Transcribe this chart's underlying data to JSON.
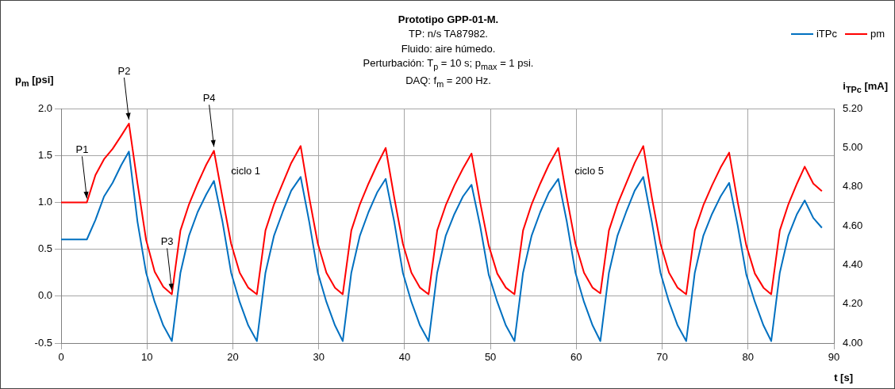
{
  "chart_data": {
    "type": "line",
    "title": "Prototipo GPP-01-M.",
    "subtitle": "TP: n/s TA87982.\nFluido: aire húmedo.\nPerturbación: T$_{p}$ = 10 s; p$_{max}$ = 1 psi.\nDAQ: f$_{m}$ = 200 Hz.",
    "xlabel": "t [s]",
    "ylabel": "p$_{m}$ [psi]",
    "y2label": "i$_{TPc}$ [mA]",
    "x": [
      0,
      3,
      4,
      5,
      6,
      7,
      7.9,
      8.9,
      9.9,
      10.9,
      11.9,
      12.9,
      13.9,
      14.9,
      15.9,
      16.9,
      17.8,
      18.8,
      19.8,
      20.8,
      21.8,
      22.8,
      23.8,
      24.8,
      25.8,
      26.8,
      27.9,
      28.9,
      29.9,
      30.9,
      31.9,
      32.8,
      33.8,
      34.8,
      35.8,
      36.8,
      37.8,
      38.8,
      39.8,
      40.8,
      41.8,
      42.8,
      43.8,
      44.8,
      45.8,
      46.8,
      47.8,
      48.8,
      49.8,
      50.8,
      51.8,
      52.8,
      53.8,
      54.8,
      55.8,
      56.8,
      57.9,
      58.9,
      59.9,
      60.9,
      61.9,
      62.8,
      63.8,
      64.8,
      65.8,
      66.8,
      67.8,
      68.8,
      69.8,
      70.8,
      71.8,
      72.8,
      73.8,
      74.8,
      75.8,
      76.8,
      77.8,
      78.8,
      79.8,
      80.8,
      81.8,
      82.7,
      83.7,
      84.7,
      85.7,
      86.6,
      87.6,
      88.6
    ],
    "series": [
      {
        "name": "iTPc",
        "color": "#0070c0",
        "axis": "y2",
        "values": [
          4.53,
          4.53,
          4.63,
          4.75,
          4.82,
          4.91,
          4.98,
          4.62,
          4.36,
          4.21,
          4.09,
          4.01,
          4.36,
          4.55,
          4.67,
          4.76,
          4.83,
          4.62,
          4.36,
          4.21,
          4.09,
          4.01,
          4.36,
          4.55,
          4.67,
          4.78,
          4.85,
          4.62,
          4.36,
          4.21,
          4.09,
          4.01,
          4.36,
          4.55,
          4.67,
          4.77,
          4.84,
          4.62,
          4.36,
          4.21,
          4.09,
          4.01,
          4.36,
          4.55,
          4.66,
          4.75,
          4.81,
          4.6,
          4.35,
          4.21,
          4.09,
          4.01,
          4.36,
          4.55,
          4.67,
          4.77,
          4.84,
          4.62,
          4.36,
          4.21,
          4.09,
          4.01,
          4.36,
          4.55,
          4.67,
          4.78,
          4.85,
          4.62,
          4.36,
          4.21,
          4.09,
          4.01,
          4.36,
          4.55,
          4.66,
          4.75,
          4.82,
          4.6,
          4.35,
          4.21,
          4.09,
          4.01,
          4.36,
          4.55,
          4.66,
          4.73,
          4.64,
          4.59
        ]
      },
      {
        "name": "pm",
        "color": "#ff0000",
        "values": [
          1.0,
          1.0,
          1.29,
          1.46,
          1.57,
          1.71,
          1.84,
          1.2,
          0.6,
          0.26,
          0.1,
          0.02,
          0.7,
          0.98,
          1.2,
          1.4,
          1.55,
          1.05,
          0.56,
          0.25,
          0.09,
          0.02,
          0.7,
          0.98,
          1.2,
          1.42,
          1.6,
          1.05,
          0.56,
          0.25,
          0.09,
          0.02,
          0.7,
          0.98,
          1.2,
          1.4,
          1.58,
          1.05,
          0.56,
          0.25,
          0.09,
          0.02,
          0.7,
          0.97,
          1.18,
          1.36,
          1.52,
          1.0,
          0.54,
          0.24,
          0.09,
          0.02,
          0.7,
          0.98,
          1.2,
          1.4,
          1.58,
          1.05,
          0.56,
          0.25,
          0.09,
          0.03,
          0.7,
          0.98,
          1.2,
          1.42,
          1.6,
          1.05,
          0.56,
          0.25,
          0.09,
          0.02,
          0.7,
          0.97,
          1.18,
          1.37,
          1.53,
          1.0,
          0.54,
          0.24,
          0.09,
          0.02,
          0.7,
          0.98,
          1.2,
          1.38,
          1.2,
          1.12
        ]
      }
    ],
    "xlim": [
      0,
      90
    ],
    "xticks": [
      0,
      10,
      20,
      30,
      40,
      50,
      60,
      70,
      80,
      90
    ],
    "ylim": [
      -0.5,
      2
    ],
    "yticks": [
      {
        "value": -0.5,
        "label": "-0.5"
      },
      {
        "value": 0,
        "label": "0.0"
      },
      {
        "value": 0.5,
        "label": "0.5"
      },
      {
        "value": 1,
        "label": "1.0"
      },
      {
        "value": 1.5,
        "label": "1.5"
      },
      {
        "value": 2,
        "label": "2.0"
      }
    ],
    "y2lim": [
      4,
      5.2
    ],
    "y2ticks": [
      {
        "value": 4,
        "label": "4.00"
      },
      {
        "value": 4.2,
        "label": "4.20"
      },
      {
        "value": 4.4,
        "label": "4.40"
      },
      {
        "value": 4.6,
        "label": "4.60"
      },
      {
        "value": 4.8,
        "label": "4.80"
      },
      {
        "value": 5,
        "label": "5.00"
      },
      {
        "value": 5.2,
        "label": "5.20"
      }
    ],
    "annotations": [
      {
        "text": "P1",
        "x": 3,
        "y": 1.0
      },
      {
        "text": "P2",
        "x": 7.9,
        "y": 1.84
      },
      {
        "text": "P3",
        "x": 12.9,
        "y": 0.02
      },
      {
        "text": "P4",
        "x": 17.8,
        "y": 1.55
      },
      "ciclo 1",
      "ciclo 5"
    ],
    "grid": true,
    "legend": "top right",
    "marker": "none",
    "line_style": "solid"
  }
}
